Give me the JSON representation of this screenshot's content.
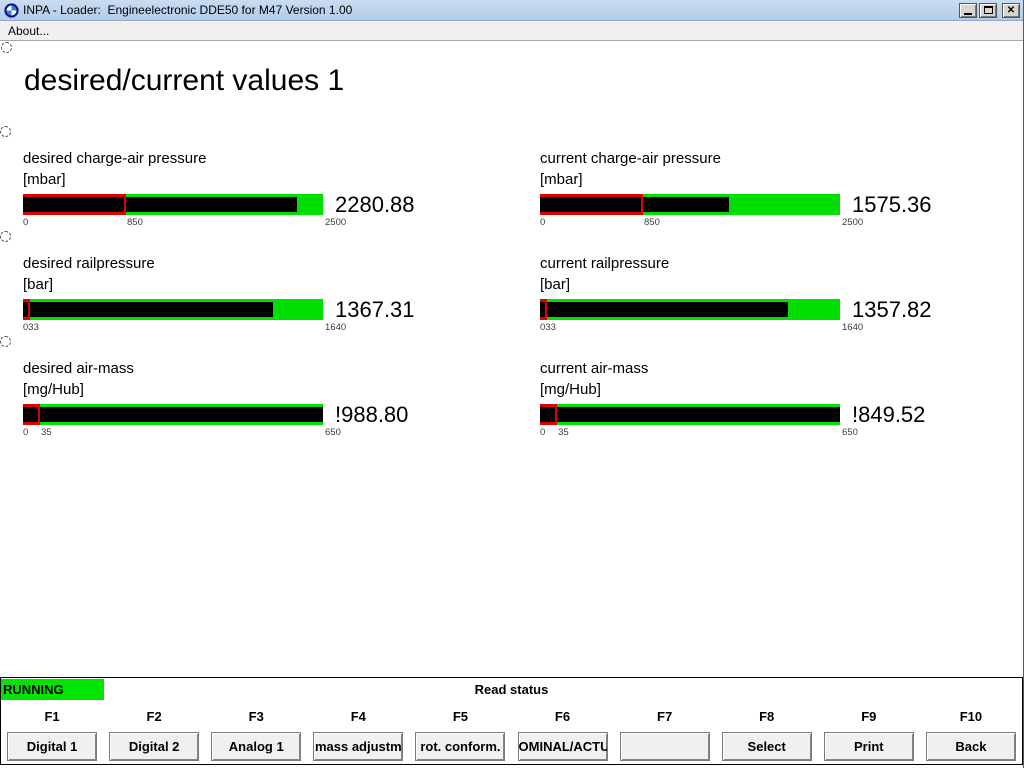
{
  "window": {
    "title": "INPA - Loader:  Engineelectronic DDE50 for M47 Version 1.00",
    "controls": {
      "minimize": "minimize",
      "maximize": "maximize",
      "close": "✕"
    }
  },
  "menu": {
    "about_label": "About..."
  },
  "page": {
    "heading": "desired/current values 1"
  },
  "colors": {
    "bar_green": "#00e000",
    "bar_red": "#e10000",
    "bar_fill": "#000000",
    "running_bg": "#00e400",
    "titlebar_blue": "#b2cce9"
  },
  "gauges": [
    {
      "name": "desired charge-air pressure",
      "unit": "[mbar]",
      "display": "2280.88",
      "value": 2280.88,
      "min": 0,
      "max": 2500,
      "red_to": 850,
      "scale_left": "0",
      "scale_mid": "850",
      "scale_right": "2500"
    },
    {
      "name": "current charge-air pressure",
      "unit": "[mbar]",
      "display": "1575.36",
      "value": 1575.36,
      "min": 0,
      "max": 2500,
      "red_to": 850,
      "scale_left": "0",
      "scale_mid": "850",
      "scale_right": "2500"
    },
    {
      "name": "desired railpressure",
      "unit": "[bar]",
      "display": "1367.31",
      "value": 1367.31,
      "min": 0,
      "max": 1640,
      "red_to": 33,
      "scale_left": "033",
      "scale_mid": "",
      "scale_right": "1640"
    },
    {
      "name": "current railpressure",
      "unit": "[bar]",
      "display": "1357.82",
      "value": 1357.82,
      "min": 0,
      "max": 1640,
      "red_to": 33,
      "scale_left": "033",
      "scale_mid": "",
      "scale_right": "1640"
    },
    {
      "name": "desired air-mass",
      "unit": "[mg/Hub]",
      "display": "!988.80",
      "value": 988.8,
      "min": 0,
      "max": 650,
      "red_to": 35,
      "scale_left": "0",
      "scale_mid": "35",
      "scale_right": "650"
    },
    {
      "name": "current air-mass",
      "unit": "[mg/Hub]",
      "display": "!849.52",
      "value": 849.52,
      "min": 0,
      "max": 650,
      "red_to": 35,
      "scale_left": "0",
      "scale_mid": "35",
      "scale_right": "650"
    }
  ],
  "status": {
    "running": "RUNNING",
    "message": "Read status"
  },
  "function_keys": [
    {
      "key": "F1",
      "label": "Digital 1"
    },
    {
      "key": "F2",
      "label": "Digital 2"
    },
    {
      "key": "F3",
      "label": "Analog 1"
    },
    {
      "key": "F4",
      "label": "mass adjustm"
    },
    {
      "key": "F5",
      "label": "rot. conform."
    },
    {
      "key": "F6",
      "label": "OMINAL/ACTU."
    },
    {
      "key": "F7",
      "label": ""
    },
    {
      "key": "F8",
      "label": "Select"
    },
    {
      "key": "F9",
      "label": "Print"
    },
    {
      "key": "F10",
      "label": "Back"
    }
  ]
}
